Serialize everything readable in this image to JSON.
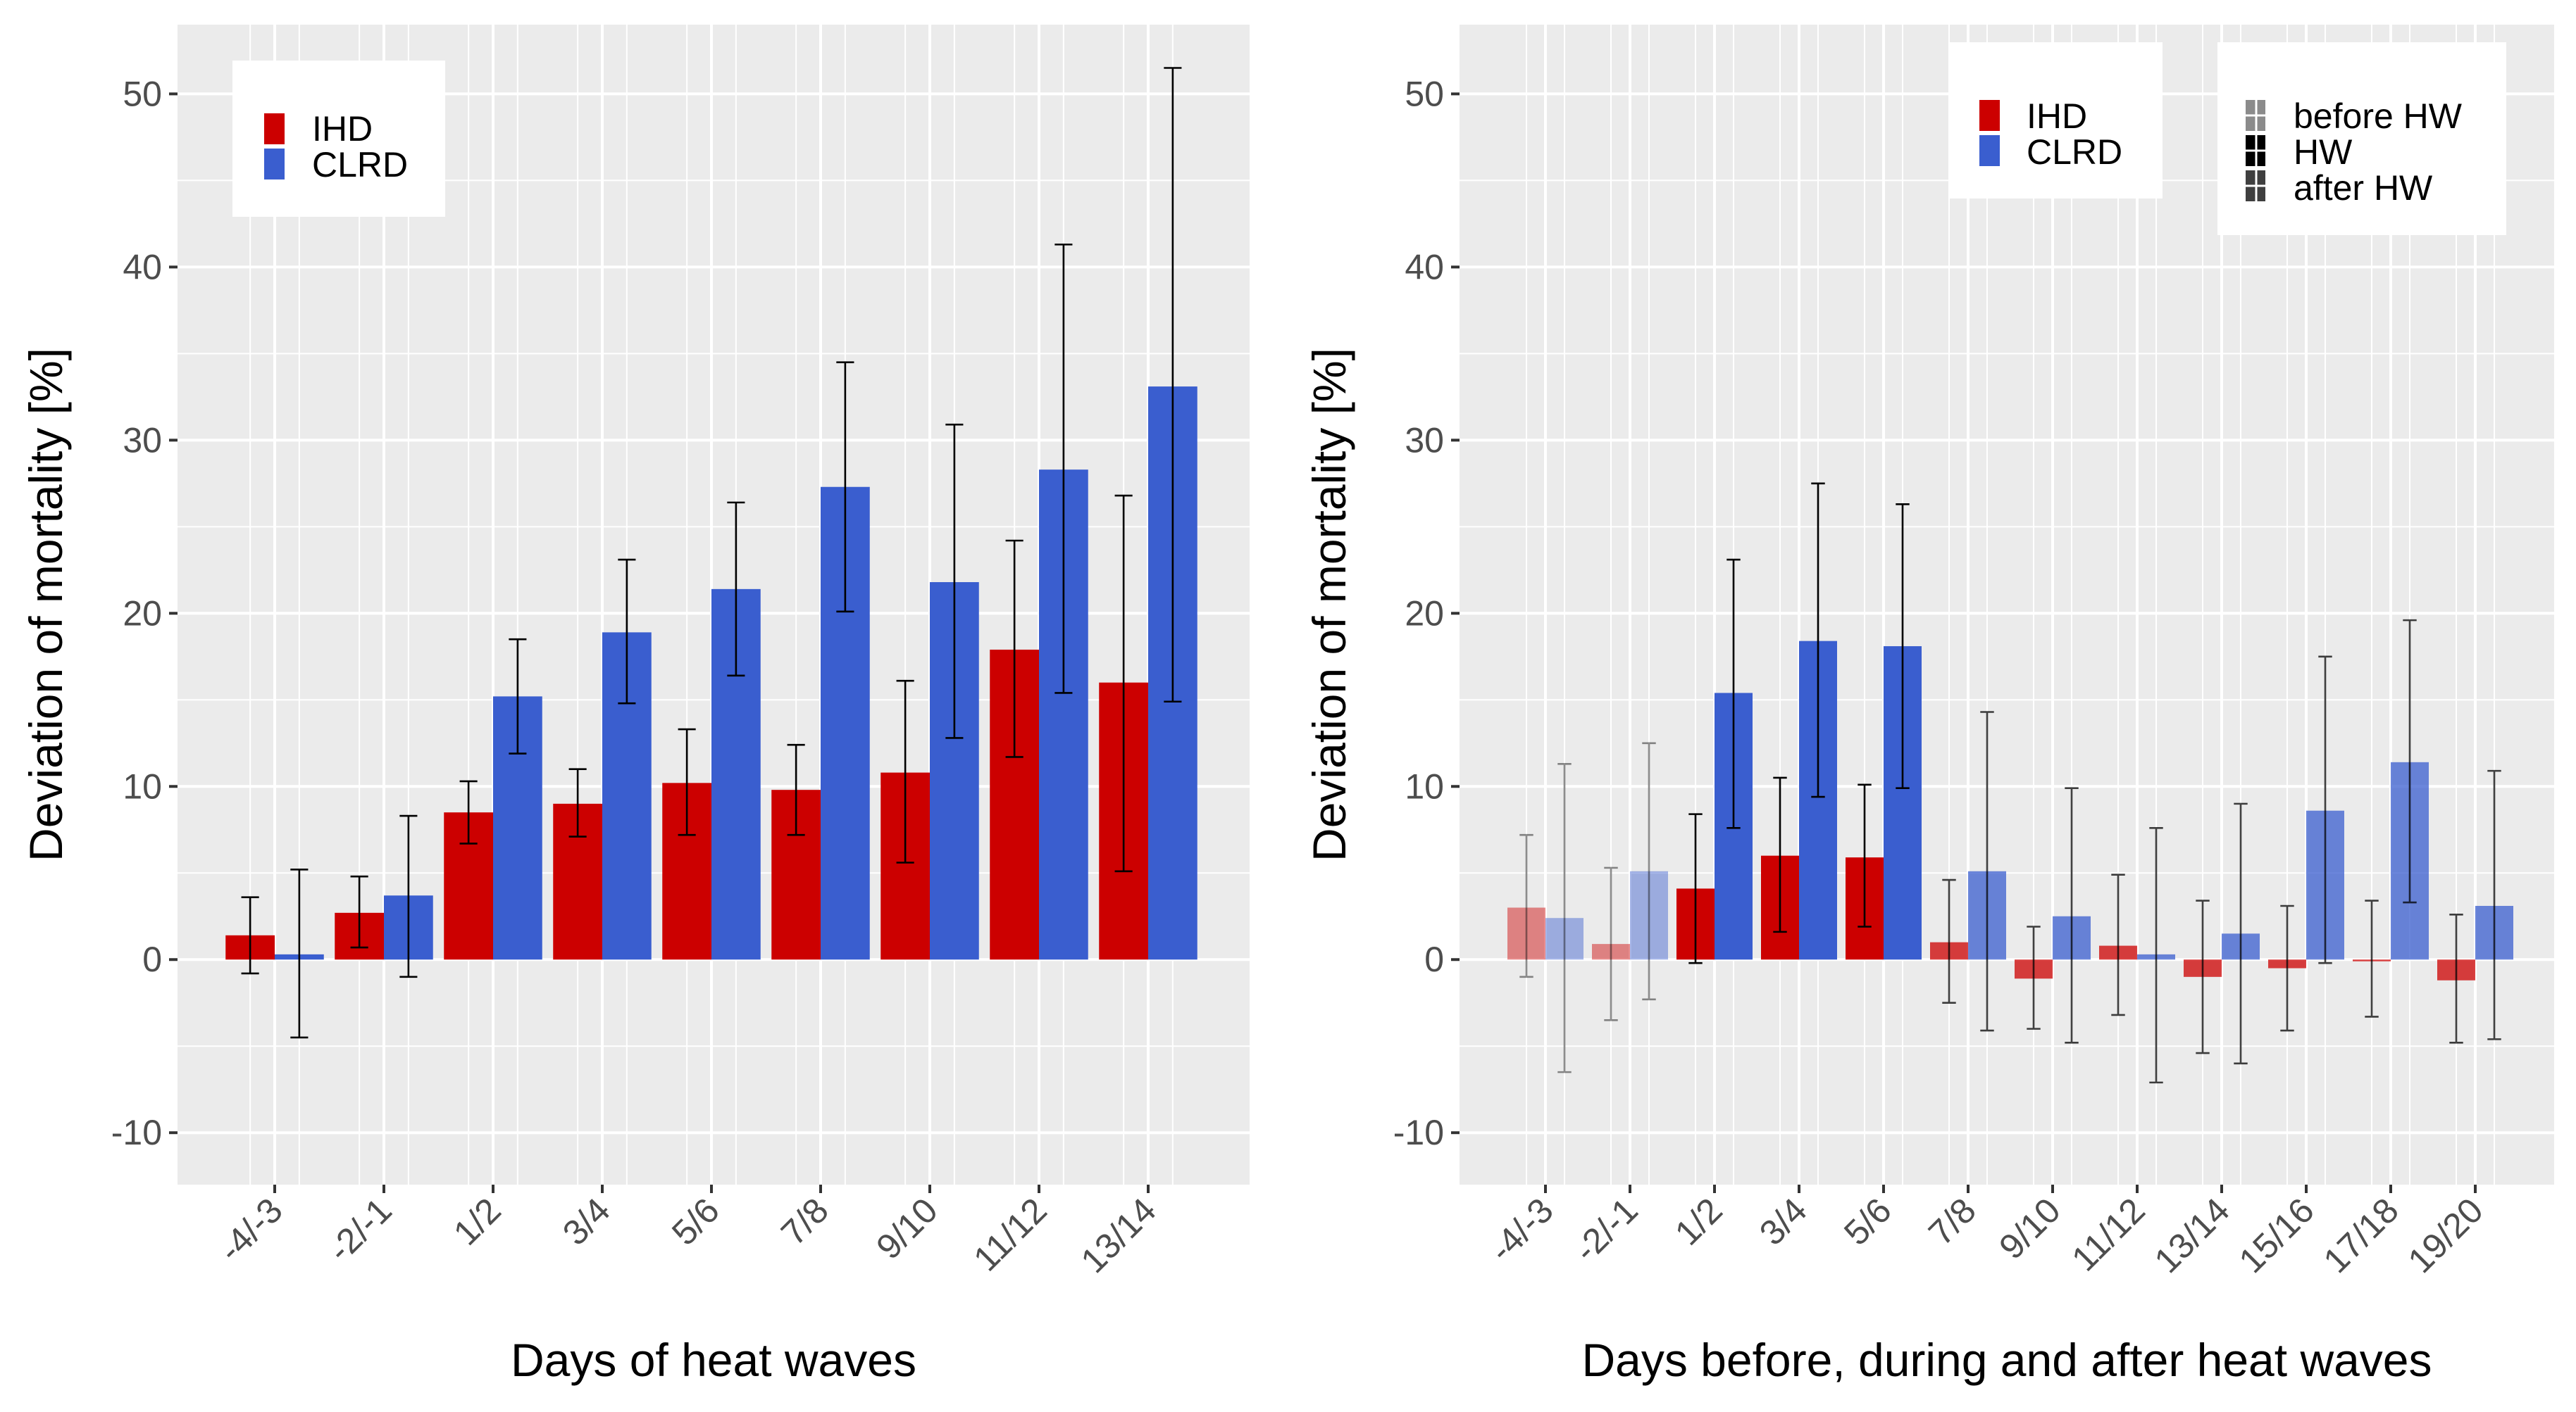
{
  "colors": {
    "IHD": "#cc0000",
    "CLRD": "#3a5ecf"
  },
  "chart_data": [
    {
      "type": "bar",
      "xlabel": "Days of heat waves",
      "ylabel": "Deviation of mortality [%]",
      "ylim": [
        -13,
        54
      ],
      "yticks": [
        -10,
        0,
        10,
        20,
        30,
        40,
        50
      ],
      "ytick_labels": [
        "-10",
        "0",
        "10",
        "20",
        "30",
        "40",
        "50"
      ],
      "grid": true,
      "legend": {
        "position": "top-left",
        "entries": [
          "IHD",
          "CLRD"
        ]
      },
      "categories": [
        "-4/-3",
        "-2/-1",
        "1/2",
        "3/4",
        "5/6",
        "7/8",
        "9/10",
        "11/12",
        "13/14"
      ],
      "series": [
        {
          "name": "IHD",
          "values": [
            1.4,
            2.7,
            8.5,
            9.0,
            10.2,
            9.8,
            10.8,
            17.9,
            16.0
          ],
          "lower": [
            -0.8,
            0.7,
            6.7,
            7.1,
            7.2,
            7.2,
            5.6,
            11.7,
            5.1
          ],
          "upper": [
            3.6,
            4.8,
            10.3,
            11.0,
            13.3,
            12.4,
            16.1,
            24.2,
            26.8
          ]
        },
        {
          "name": "CLRD",
          "values": [
            0.3,
            3.7,
            15.2,
            18.9,
            21.4,
            27.3,
            21.8,
            28.3,
            33.1
          ],
          "lower": [
            -4.5,
            -1.0,
            11.9,
            14.8,
            16.4,
            20.1,
            12.8,
            15.4,
            14.9
          ],
          "upper": [
            5.2,
            8.3,
            18.5,
            23.1,
            26.4,
            34.5,
            30.9,
            41.3,
            51.5
          ]
        }
      ]
    },
    {
      "type": "bar",
      "xlabel": "Days before, during and after heat waves",
      "ylabel": "Deviation of mortality [%]",
      "ylim": [
        -13,
        54
      ],
      "yticks": [
        -10,
        0,
        10,
        20,
        30,
        40,
        50
      ],
      "ytick_labels": [
        "-10",
        "0",
        "10",
        "20",
        "30",
        "40",
        "50"
      ],
      "grid": true,
      "legend": {
        "position": "top-right",
        "entries": [
          "IHD",
          "CLRD"
        ]
      },
      "alpha_legend": {
        "position": "top-right",
        "entries": [
          "before HW",
          "HW",
          "after HW"
        ],
        "alphas": [
          0.45,
          1.0,
          0.75
        ]
      },
      "categories": [
        "-4/-3",
        "-2/-1",
        "1/2",
        "3/4",
        "5/6",
        "7/8",
        "9/10",
        "11/12",
        "13/14",
        "15/16",
        "17/18",
        "19/20"
      ],
      "phase": [
        "before HW",
        "before HW",
        "HW",
        "HW",
        "HW",
        "after HW",
        "after HW",
        "after HW",
        "after HW",
        "after HW",
        "after HW",
        "after HW"
      ],
      "series": [
        {
          "name": "IHD",
          "values": [
            3.0,
            0.9,
            4.1,
            6.0,
            5.9,
            1.0,
            -1.1,
            0.8,
            -1.0,
            -0.5,
            -0.1,
            -1.2
          ],
          "lower": [
            -1.0,
            -3.5,
            -0.2,
            1.6,
            1.9,
            -2.5,
            -4.0,
            -3.2,
            -5.4,
            -4.1,
            -3.3,
            -4.8
          ],
          "upper": [
            7.2,
            5.3,
            8.4,
            10.5,
            10.1,
            4.6,
            1.9,
            4.9,
            3.4,
            3.1,
            3.4,
            2.6
          ]
        },
        {
          "name": "CLRD",
          "values": [
            2.4,
            5.1,
            15.4,
            18.4,
            18.1,
            5.1,
            2.5,
            0.3,
            1.5,
            8.6,
            11.4,
            3.1
          ],
          "lower": [
            -6.5,
            -2.3,
            7.6,
            9.4,
            9.9,
            -4.1,
            -4.8,
            -7.1,
            -6.0,
            -0.2,
            3.3,
            -4.6
          ],
          "upper": [
            11.3,
            12.5,
            23.1,
            27.5,
            26.3,
            14.3,
            9.9,
            7.6,
            9.0,
            17.5,
            19.6,
            10.9
          ]
        }
      ]
    }
  ]
}
